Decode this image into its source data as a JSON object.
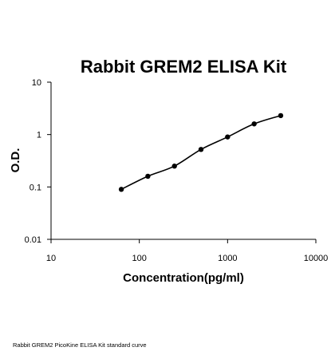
{
  "chart_data": {
    "type": "scatter",
    "title": "Rabbit GREM2 ELISA Kit",
    "xlabel": "Concentration(pg/ml)",
    "ylabel": "O.D.",
    "xscale": "log",
    "yscale": "log",
    "xlim": [
      10,
      10000
    ],
    "ylim": [
      0.01,
      10
    ],
    "x_ticks": [
      10,
      100,
      1000,
      10000
    ],
    "x_tick_labels": [
      "10",
      "100",
      "1000",
      "10000"
    ],
    "y_ticks": [
      10,
      1,
      0.1,
      0.01
    ],
    "y_tick_labels": [
      "10",
      "1",
      "0.1",
      "0.01"
    ],
    "grid": false,
    "legend": "none",
    "series": [
      {
        "points": [
          {
            "x": 62.5,
            "y": 0.09
          },
          {
            "x": 125,
            "y": 0.16
          },
          {
            "x": 250,
            "y": 0.25
          },
          {
            "x": 500,
            "y": 0.52
          },
          {
            "x": 1000,
            "y": 0.9
          },
          {
            "x": 2000,
            "y": 1.6
          },
          {
            "x": 4000,
            "y": 2.3
          }
        ],
        "fit_curve": true,
        "color": "#000000"
      }
    ]
  },
  "caption": "Rabbit GREM2 PicoKine ELISA Kit standard curve"
}
